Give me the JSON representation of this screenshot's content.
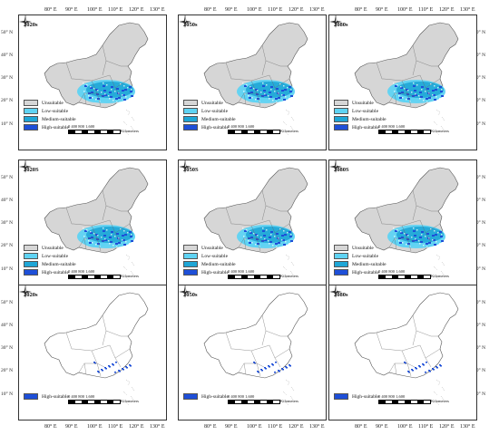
{
  "top_lon_labels": [
    "80° E",
    "90° E",
    "100° E",
    "110° E",
    "120° E",
    "130° E"
  ],
  "bottom_lon_labels": [
    "80° E",
    "90° E",
    "100° E",
    "110° E",
    "120° E",
    "130° E"
  ],
  "lat_labels": [
    "50° N",
    "40° N",
    "30° N",
    "20° N",
    "10° N"
  ],
  "legend_labels": {
    "unsuitable": "Unsuitable",
    "low": "Low-suitable",
    "medium": "Medium-suitable",
    "high": "High-suitable"
  },
  "scale": {
    "numbers": "0  400 800         1,600",
    "unit": "Kilometers"
  },
  "colors": {
    "unsuitable": "#d6d6d6",
    "low": "#5fd3f3",
    "medium": "#1fa6d6",
    "high": "#1e4fd8",
    "border": "#333333"
  },
  "rows": [
    {
      "mode": "all",
      "titles": [
        "2020s",
        "2050s",
        "2080s"
      ]
    },
    {
      "mode": "all",
      "titles": [
        "2020S",
        "2050S",
        "2080S"
      ]
    },
    {
      "mode": "high",
      "titles": [
        "2020s",
        "2050s",
        "2080s"
      ]
    }
  ]
}
